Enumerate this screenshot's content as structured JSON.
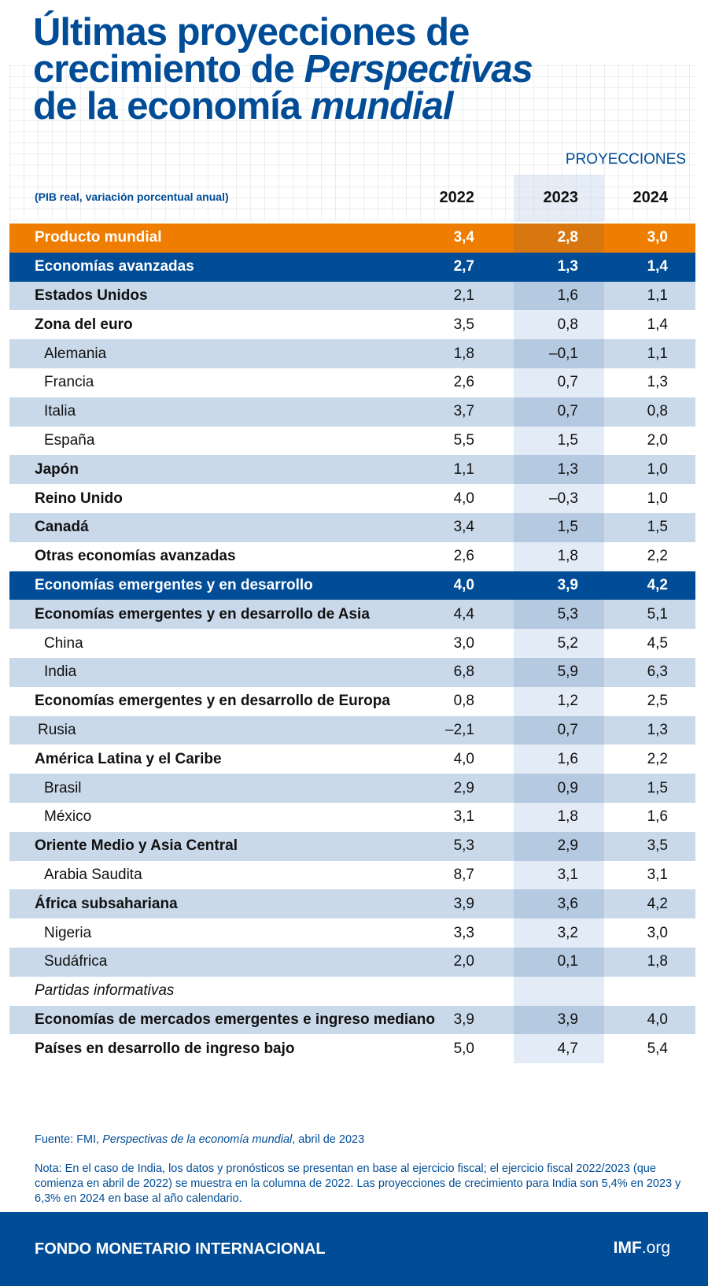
{
  "title": {
    "line1": "Últimas proyecciones de",
    "line2_a": "crecimiento de ",
    "line2_b": "Perspectivas",
    "line3_a": "de la economía ",
    "line3_b": "mundial"
  },
  "projections_label": "PROYECCIONES",
  "subtitle": "(PIB real, variación porcentual anual)",
  "years": [
    "2022",
    "2023",
    "2024"
  ],
  "colors": {
    "orange": "#ef7d00",
    "blue": "#004c97",
    "shade": "#cad9ea"
  },
  "rows": [
    {
      "label": "Producto mundial",
      "v": [
        "3,4",
        "2,8",
        "3,0"
      ],
      "style": "orange"
    },
    {
      "label": "Economías avanzadas",
      "v": [
        "2,7",
        "1,3",
        "1,4"
      ],
      "style": "blue"
    },
    {
      "label": "Estados Unidos",
      "v": [
        "2,1",
        "1,6",
        "1,1"
      ],
      "style": "bold"
    },
    {
      "label": "Zona del euro",
      "v": [
        "3,5",
        "0,8",
        "1,4"
      ],
      "style": "bold"
    },
    {
      "label": "Alemania",
      "v": [
        "1,8",
        "–0,1",
        "1,1"
      ],
      "style": "indent"
    },
    {
      "label": "Francia",
      "v": [
        "2,6",
        "0,7",
        "1,3"
      ],
      "style": "indent"
    },
    {
      "label": "Italia",
      "v": [
        "3,7",
        "0,7",
        "0,8"
      ],
      "style": "indent"
    },
    {
      "label": "España",
      "v": [
        "5,5",
        "1,5",
        "2,0"
      ],
      "style": "indent"
    },
    {
      "label": "Japón",
      "v": [
        "1,1",
        "1,3",
        "1,0"
      ],
      "style": "bold"
    },
    {
      "label": "Reino Unido",
      "v": [
        "4,0",
        "–0,3",
        "1,0"
      ],
      "style": "bold"
    },
    {
      "label": "Canadá",
      "v": [
        "3,4",
        "1,5",
        "1,5"
      ],
      "style": "bold"
    },
    {
      "label": "Otras economías avanzadas",
      "v": [
        "2,6",
        "1,8",
        "2,2"
      ],
      "style": "bold"
    },
    {
      "label": "Economías emergentes y en desarrollo",
      "v": [
        "4,0",
        "3,9",
        "4,2"
      ],
      "style": "blue"
    },
    {
      "label": "Economías emergentes y en desarrollo de Asia",
      "v": [
        "4,4",
        "5,3",
        "5,1"
      ],
      "style": "bold"
    },
    {
      "label": "China",
      "v": [
        "3,0",
        "5,2",
        "4,5"
      ],
      "style": "indent"
    },
    {
      "label": "India",
      "v": [
        "6,8",
        "5,9",
        "6,3"
      ],
      "style": "indent"
    },
    {
      "label": "Economías emergentes y en desarrollo de Europa",
      "v": [
        "0,8",
        "1,2",
        "2,5"
      ],
      "style": "bold"
    },
    {
      "label": "Rusia",
      "v": [
        "–2,1",
        "0,7",
        "1,3"
      ],
      "style": "indent1"
    },
    {
      "label": "América Latina y el Caribe",
      "v": [
        "4,0",
        "1,6",
        "2,2"
      ],
      "style": "bold"
    },
    {
      "label": "Brasil",
      "v": [
        "2,9",
        "0,9",
        "1,5"
      ],
      "style": "indent"
    },
    {
      "label": "México",
      "v": [
        "3,1",
        "1,8",
        "1,6"
      ],
      "style": "indent"
    },
    {
      "label": "Oriente Medio y Asia Central",
      "v": [
        "5,3",
        "2,9",
        "3,5"
      ],
      "style": "bold"
    },
    {
      "label": "Arabia Saudita",
      "v": [
        "8,7",
        "3,1",
        "3,1"
      ],
      "style": "indent"
    },
    {
      "label": "África subsahariana",
      "v": [
        "3,9",
        "3,6",
        "4,2"
      ],
      "style": "bold"
    },
    {
      "label": "Nigeria",
      "v": [
        "3,3",
        "3,2",
        "3,0"
      ],
      "style": "indent"
    },
    {
      "label": "Sudáfrica",
      "v": [
        "2,0",
        "0,1",
        "1,8"
      ],
      "style": "indent"
    },
    {
      "label": "Partidas informativas",
      "v": [
        "",
        "",
        ""
      ],
      "style": "italic"
    },
    {
      "label": "Economías de mercados emergentes e ingreso mediano",
      "v": [
        "3,9",
        "3,9",
        "4,0"
      ],
      "style": "bold"
    },
    {
      "label": "Países en desarrollo de ingreso bajo",
      "v": [
        "5,0",
        "4,7",
        "5,4"
      ],
      "style": "bold"
    }
  ],
  "source": {
    "prefix": "Fuente: FMI, ",
    "title": "Perspectivas de la economía mundial",
    "suffix": ", abril de 2023"
  },
  "note": "Nota: En el caso de India, los datos y pronósticos se presentan en base al ejercicio fiscal; el ejercicio fiscal 2022/2023 (que comienza en abril de 2022) se muestra en la columna de 2022. Las proyecciones de crecimiento para India son 5,4% en 2023 y 6,3% en 2024 en base al año calendario.",
  "footer": {
    "org": "FONDO MONETARIO INTERNACIONAL",
    "site_bold": "IMF",
    "site_rest": ".org"
  }
}
